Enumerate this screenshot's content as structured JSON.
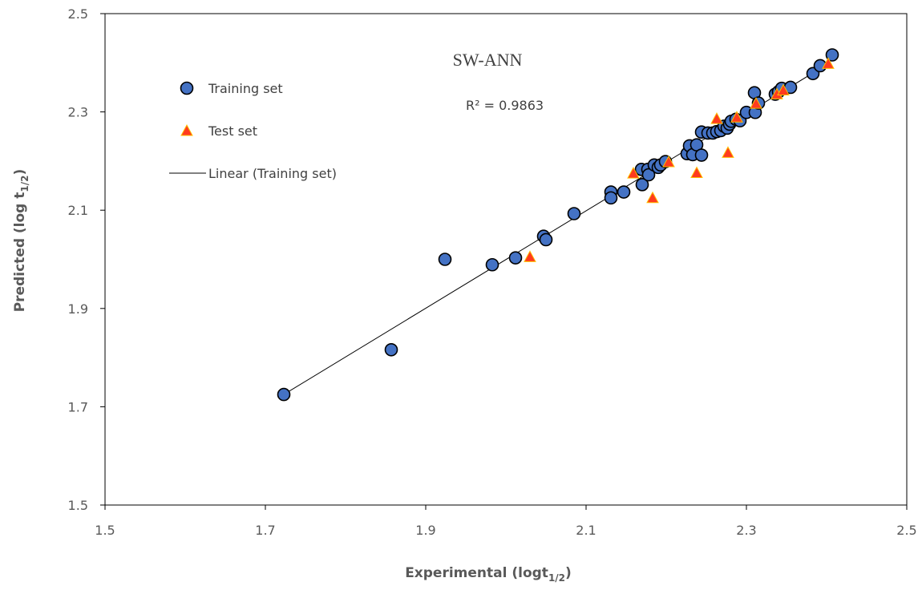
{
  "chart_data": {
    "type": "scatter",
    "title": "SW-ANN",
    "xlabel_main": "Experimental (logt",
    "xlabel_sub": "1/2",
    "xlabel_end": ")",
    "ylabel_main": "Predicted (log t",
    "ylabel_sub": "1/2",
    "ylabel_end": ")",
    "xlim": [
      1.5,
      2.5
    ],
    "ylim": [
      1.5,
      2.5
    ],
    "xticks": [
      "1.5",
      "1.7",
      "1.9",
      "2.1",
      "2.3",
      "2.5"
    ],
    "yticks": [
      "1.5",
      "1.7",
      "1.9",
      "2.1",
      "2.3",
      "2.5"
    ],
    "r2_label": "R² = 0.9863",
    "legend": {
      "position": "top-left",
      "training": "Training set",
      "test": "Test set",
      "linear": "Linear (Training set)"
    },
    "colors": {
      "training_fill": "#4472C4",
      "training_stroke": "#000000",
      "test_fill": "#FF3B1F",
      "test_stroke": "#FFC000",
      "trendline": "#000000",
      "frame": "#000000"
    },
    "trendline": {
      "x": [
        1.723,
        2.402
      ],
      "y": [
        1.725,
        2.398
      ]
    },
    "series": [
      {
        "name": "Training set",
        "marker": "circle",
        "points": [
          [
            1.723,
            1.725
          ],
          [
            1.857,
            1.816
          ],
          [
            1.924,
            2.0
          ],
          [
            1.983,
            1.989
          ],
          [
            2.012,
            2.003
          ],
          [
            2.047,
            2.047
          ],
          [
            2.05,
            2.04
          ],
          [
            2.085,
            2.093
          ],
          [
            2.131,
            2.137
          ],
          [
            2.131,
            2.125
          ],
          [
            2.147,
            2.137
          ],
          [
            2.17,
            2.152
          ],
          [
            2.169,
            2.183
          ],
          [
            2.177,
            2.183
          ],
          [
            2.178,
            2.172
          ],
          [
            2.185,
            2.192
          ],
          [
            2.19,
            2.187
          ],
          [
            2.193,
            2.192
          ],
          [
            2.199,
            2.199
          ],
          [
            2.226,
            2.215
          ],
          [
            2.229,
            2.231
          ],
          [
            2.233,
            2.213
          ],
          [
            2.238,
            2.233
          ],
          [
            2.244,
            2.212
          ],
          [
            2.244,
            2.259
          ],
          [
            2.252,
            2.257
          ],
          [
            2.258,
            2.257
          ],
          [
            2.263,
            2.26
          ],
          [
            2.268,
            2.262
          ],
          [
            2.272,
            2.271
          ],
          [
            2.276,
            2.267
          ],
          [
            2.279,
            2.275
          ],
          [
            2.281,
            2.281
          ],
          [
            2.287,
            2.285
          ],
          [
            2.292,
            2.282
          ],
          [
            2.3,
            2.299
          ],
          [
            2.31,
            2.339
          ],
          [
            2.311,
            2.299
          ],
          [
            2.315,
            2.318
          ],
          [
            2.336,
            2.336
          ],
          [
            2.34,
            2.341
          ],
          [
            2.344,
            2.348
          ],
          [
            2.355,
            2.35
          ],
          [
            2.383,
            2.378
          ],
          [
            2.392,
            2.394
          ],
          [
            2.407,
            2.416
          ]
        ]
      },
      {
        "name": "Test set",
        "marker": "triangle",
        "points": [
          [
            2.03,
            2.006
          ],
          [
            2.159,
            2.176
          ],
          [
            2.183,
            2.126
          ],
          [
            2.203,
            2.199
          ],
          [
            2.238,
            2.177
          ],
          [
            2.263,
            2.287
          ],
          [
            2.277,
            2.218
          ],
          [
            2.288,
            2.29
          ],
          [
            2.312,
            2.318
          ],
          [
            2.338,
            2.337
          ],
          [
            2.346,
            2.345
          ],
          [
            2.402,
            2.399
          ]
        ]
      }
    ]
  }
}
